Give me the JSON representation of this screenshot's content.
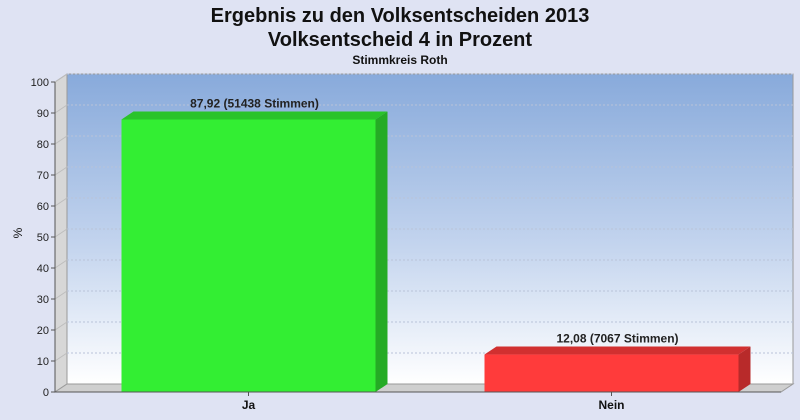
{
  "chart_data": {
    "type": "bar",
    "title": "Ergebnis zu den Volksentscheiden 2013",
    "subtitle": "Volksentscheid 4 in Prozent",
    "subtitle2": "Stimmkreis Roth",
    "ylabel": "%",
    "xlabel": "",
    "ylim": [
      0,
      100
    ],
    "yticks": [
      0,
      10,
      20,
      30,
      40,
      50,
      60,
      70,
      80,
      90,
      100
    ],
    "categories": [
      "Ja",
      "Nein"
    ],
    "values": [
      87.92,
      12.08
    ],
    "data_labels": [
      "87,92 (51438 Stimmen)",
      "12,08 (7067 Stimmen)"
    ],
    "colors": [
      "#33ee33",
      "#ff3b3b"
    ],
    "grid": true,
    "legend": "none"
  }
}
